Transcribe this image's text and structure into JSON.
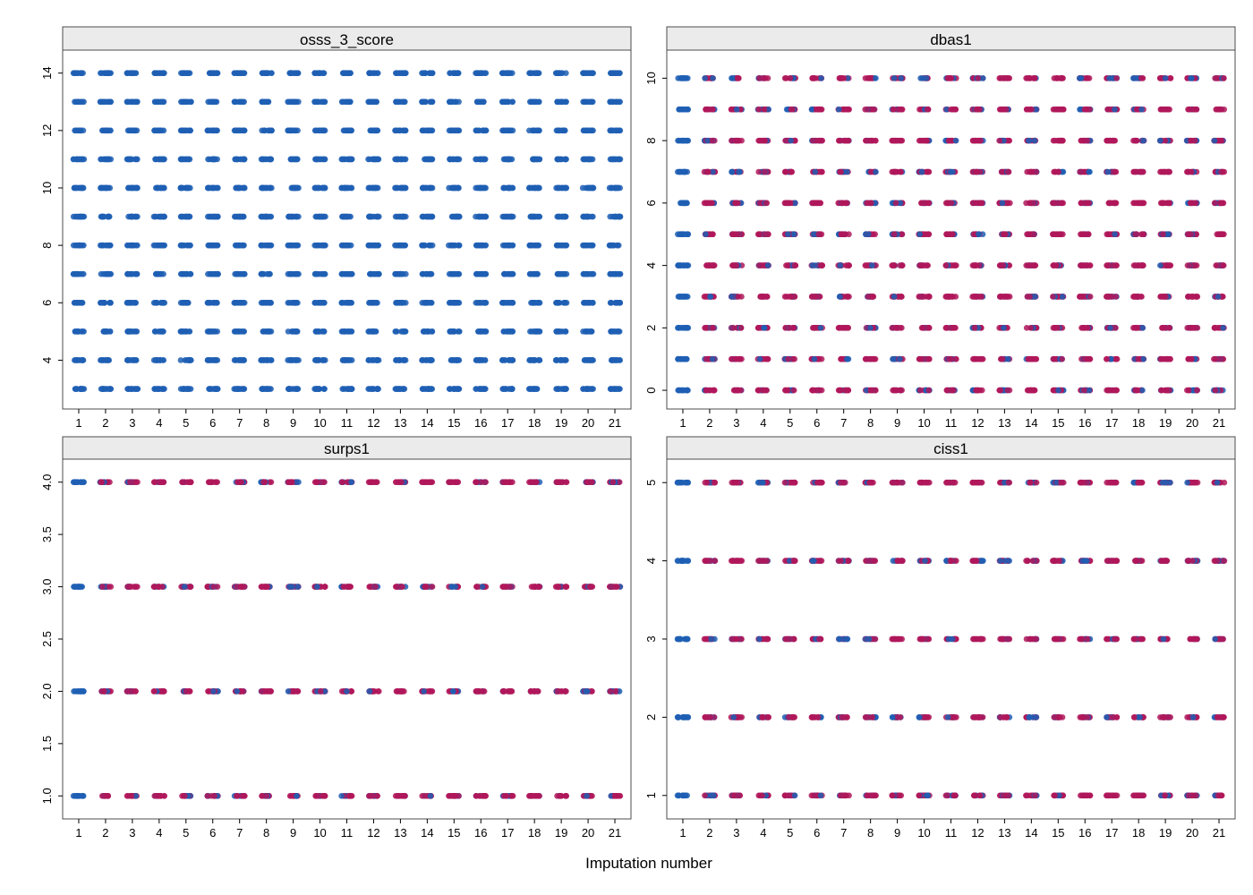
{
  "chart_data": {
    "type": "scatter",
    "xlabel": "Imputation number",
    "colors": {
      "observed": "#1F5FB4",
      "imputed": "#B0185A",
      "strip_bg": "#EBEBEB",
      "frame": "#4D4D4D"
    },
    "x_ticks": [
      "1",
      "2",
      "3",
      "4",
      "5",
      "6",
      "7",
      "8",
      "9",
      "10",
      "11",
      "12",
      "13",
      "14",
      "15",
      "16",
      "17",
      "18",
      "19",
      "20",
      "21"
    ],
    "panels": [
      {
        "title": "osss_3_score",
        "x_range": [
          0.4,
          21.6
        ],
        "y_range": [
          2.3,
          14.8
        ],
        "y_ticks": [
          4,
          6,
          8,
          10,
          12,
          14
        ],
        "y_tick_labels": [
          "4",
          "6",
          "8",
          "10",
          "12",
          "14"
        ],
        "values": [
          3,
          4,
          5,
          6,
          7,
          8,
          9,
          10,
          11,
          12,
          13,
          14
        ],
        "imputed_color_in_imputations": false
      },
      {
        "title": "dbas1",
        "x_range": [
          0.4,
          21.6
        ],
        "y_range": [
          -0.6,
          10.9
        ],
        "y_ticks": [
          0,
          2,
          4,
          6,
          8,
          10
        ],
        "y_tick_labels": [
          "0",
          "2",
          "4",
          "6",
          "8",
          "10"
        ],
        "values": [
          0,
          1,
          2,
          3,
          4,
          5,
          6,
          7,
          8,
          9,
          10
        ],
        "imputed_color_in_imputations": true
      },
      {
        "title": "surps1",
        "x_range": [
          0.4,
          21.6
        ],
        "y_range": [
          0.78,
          4.22
        ],
        "y_ticks": [
          1.0,
          1.5,
          2.0,
          2.5,
          3.0,
          3.5,
          4.0
        ],
        "y_tick_labels": [
          "1.0",
          "1.5",
          "2.0",
          "2.5",
          "3.0",
          "3.5",
          "4.0"
        ],
        "values": [
          1,
          2,
          3,
          4
        ],
        "imputed_color_in_imputations": true
      },
      {
        "title": "ciss1",
        "x_range": [
          0.4,
          21.6
        ],
        "y_range": [
          0.7,
          5.3
        ],
        "y_ticks": [
          1,
          2,
          3,
          4,
          5
        ],
        "y_tick_labels": [
          "1",
          "2",
          "3",
          "4",
          "5"
        ],
        "values": [
          1,
          2,
          3,
          4,
          5
        ],
        "imputed_color_in_imputations": true
      }
    ]
  }
}
